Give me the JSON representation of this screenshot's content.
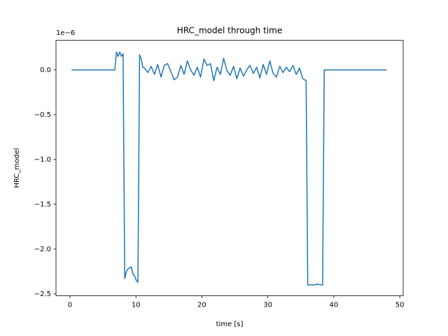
{
  "chart_data": {
    "type": "line",
    "title": "HRC_model through time",
    "xlabel": "time [s]",
    "ylabel": "HRC_model",
    "y_offset_label": "1e−6",
    "x": [
      0.24,
      6.8,
      7.05,
      7.3,
      7.55,
      7.8,
      8.05,
      8.3,
      8.55,
      8.8,
      9.3,
      9.55,
      9.8,
      10.05,
      10.3,
      10.55,
      10.8,
      11.05,
      11.3,
      11.8,
      12.3,
      12.8,
      13.3,
      13.8,
      14.3,
      14.8,
      15.3,
      15.8,
      16.3,
      16.8,
      17.3,
      17.8,
      18.3,
      18.8,
      19.3,
      19.8,
      20.3,
      20.8,
      21.3,
      21.8,
      22.3,
      22.8,
      23.3,
      23.8,
      24.3,
      24.8,
      25.3,
      25.8,
      26.3,
      26.8,
      27.3,
      27.8,
      28.3,
      28.8,
      29.3,
      29.8,
      30.3,
      30.8,
      31.3,
      31.8,
      32.3,
      32.8,
      33.3,
      33.8,
      34.3,
      34.8,
      35.3,
      35.8,
      36.05,
      36.3,
      37.0,
      37.5,
      38.0,
      38.3,
      38.55,
      38.8,
      48.0
    ],
    "series": [
      {
        "color": "#1f77b4",
        "values": [
          0,
          0,
          0.2,
          0.15,
          0.2,
          0.15,
          0.18,
          -2.33,
          -2.25,
          -2.22,
          -2.2,
          -2.28,
          -2.3,
          -2.35,
          -2.37,
          0.17,
          0.12,
          0.03,
          0.02,
          -0.03,
          0.04,
          -0.05,
          0.06,
          -0.08,
          0.05,
          0.07,
          -0.02,
          -0.11,
          -0.08,
          0.05,
          -0.05,
          0.1,
          0.0,
          -0.06,
          0.03,
          -0.08,
          0.12,
          0.05,
          0.07,
          -0.12,
          0.03,
          -0.05,
          0.13,
          -0.01,
          -0.06,
          0.04,
          -0.1,
          0.02,
          -0.07,
          0.0,
          0.05,
          -0.04,
          0.03,
          -0.09,
          0.06,
          -0.05,
          0.1,
          -0.04,
          -0.08,
          0.04,
          -0.03,
          0.03,
          -0.02,
          0.05,
          -0.05,
          0.02,
          -0.1,
          -0.12,
          -2.4,
          -2.4,
          -2.4,
          -2.39,
          -2.4,
          -2.4,
          0.0,
          0.0,
          0.0
        ]
      }
    ],
    "xlim": [
      -2.12,
      50.52
    ],
    "xticks": [
      0,
      10,
      20,
      30,
      40,
      50
    ],
    "ylim": [
      -2.52,
      0.33
    ],
    "yticks": [
      {
        "value": -2.5,
        "label": "−2.5"
      },
      {
        "value": -2.0,
        "label": "−2.0"
      },
      {
        "value": -1.5,
        "label": "−1.5"
      },
      {
        "value": -1.0,
        "label": "−1.0"
      },
      {
        "value": -0.5,
        "label": "−0.5"
      },
      {
        "value": 0,
        "label": "0.0"
      }
    ],
    "grid": false
  }
}
